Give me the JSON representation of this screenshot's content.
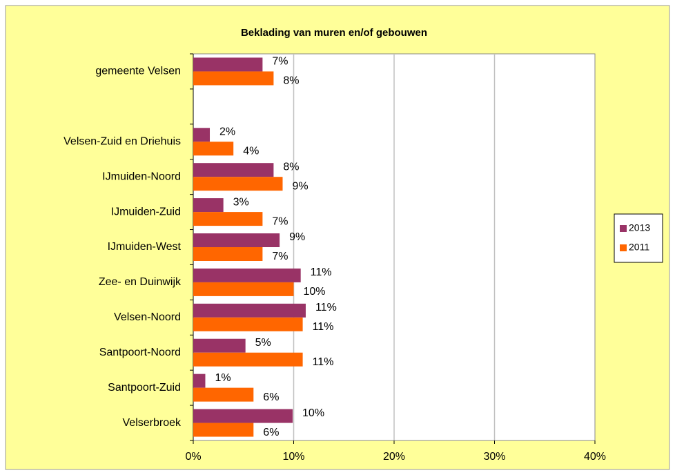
{
  "chart_data": {
    "type": "bar",
    "orientation": "horizontal",
    "title": "Beklading van muren en/of gebouwen",
    "categories": [
      "gemeente Velsen",
      null,
      "Velsen-Zuid en Driehuis",
      "IJmuiden-Noord",
      "IJmuiden-Zuid",
      "IJmuiden-West",
      "Zee- en Duinwijk",
      "Velsen-Noord",
      "Santpoort-Noord",
      "Santpoort-Zuid",
      "Velserbroek"
    ],
    "series": [
      {
        "name": "2013",
        "color": "#993366",
        "values": [
          6.9,
          null,
          1.65,
          8.0,
          3.0,
          8.6,
          10.7,
          11.2,
          5.2,
          1.2,
          9.9
        ],
        "value_labels": [
          "7%",
          null,
          "2%",
          "8%",
          "3%",
          "9%",
          "11%",
          "11%",
          "5%",
          "1%",
          "10%"
        ]
      },
      {
        "name": "2011",
        "color": "#ff6600",
        "values": [
          8.0,
          null,
          4.0,
          8.9,
          6.9,
          6.9,
          10.0,
          10.9,
          10.9,
          6.0,
          6.0
        ],
        "value_labels": [
          "8%",
          null,
          "4%",
          "9%",
          "7%",
          "7%",
          "10%",
          "11%",
          "11%",
          "6%",
          "6%"
        ]
      }
    ],
    "xlim": [
      0,
      40
    ],
    "xticks": [
      {
        "value": 0,
        "label": "0%"
      },
      {
        "value": 10,
        "label": "10%"
      },
      {
        "value": 20,
        "label": "20%"
      },
      {
        "value": 30,
        "label": "30%"
      },
      {
        "value": 40,
        "label": "40%"
      }
    ],
    "grid": true,
    "legend": "right"
  }
}
